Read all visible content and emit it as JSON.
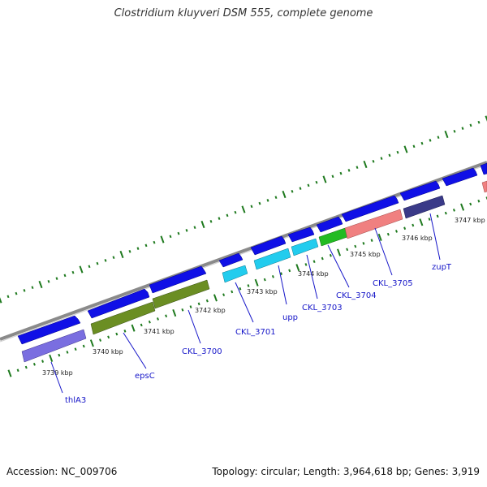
{
  "title": "Clostridium kluyveri DSM 555, complete genome",
  "accession": "Accession: NC_009706",
  "summary": "Topology: circular; Length: 3,964,618 bp; Genes: 3,919",
  "scale_labels": [
    "3739 kbp",
    "3740 kbp",
    "3741 kbp",
    "3742 kbp",
    "3743 kbp",
    "3744 kbp",
    "3745 kbp",
    "3746 kbp",
    "3747 kbp"
  ],
  "gene_labels": [
    "thlA3",
    "epsC",
    "CKL_3700",
    "CKL_3701",
    "upp",
    "CKL_3703",
    "CKL_3704",
    "CKL_3705",
    "zupT"
  ],
  "colors": {
    "cds": "#1010e6",
    "backbone": "#8a8a8a",
    "ticks": "#1f7a1f",
    "label": "#1515c8",
    "thlA3": "#7a6ee0",
    "epsC": "#6b8e23",
    "CKL_3700": "#6b8e23",
    "CKL_3701": "#22ccee",
    "upp": "#22ccee",
    "CKL_3703": "#22ccee",
    "CKL_3704": "#22bb22",
    "CKL_3705": "#f08080",
    "zupT": "#3a3a88"
  }
}
